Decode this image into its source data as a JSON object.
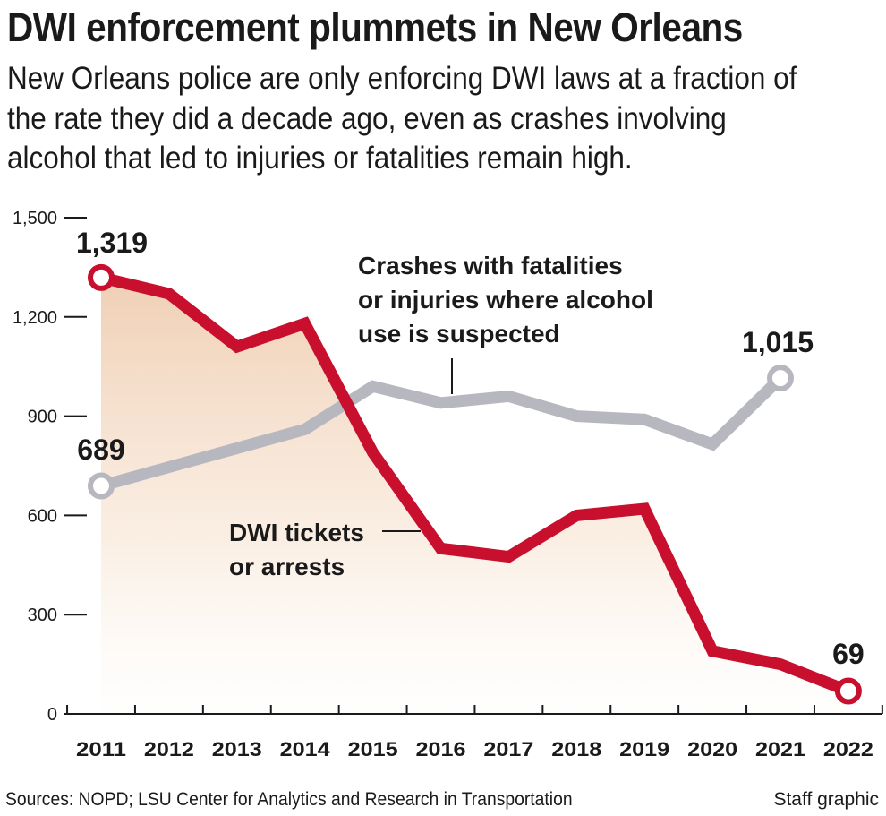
{
  "title": "DWI enforcement plummets in New Orleans",
  "subtitle": "New Orleans police are only enforcing DWI laws at a fraction of the rate they did a decade ago, even as crashes involving alcohol that led to injuries or fatalities remain high.",
  "footer": {
    "sources": "Sources: NOPD; LSU Center for Analytics and Research in Transportation",
    "credit": "Staff graphic"
  },
  "chart_data": {
    "type": "line",
    "title": "",
    "xlabel": "",
    "ylabel": "",
    "ylim": [
      0,
      1500
    ],
    "yticks": [
      0,
      300,
      600,
      900,
      1200,
      1500
    ],
    "ytick_labels": [
      "0",
      "300",
      "600",
      "900",
      "1,200",
      "1,500"
    ],
    "categories": [
      "2011",
      "2012",
      "2013",
      "2014",
      "2015",
      "2016",
      "2017",
      "2018",
      "2019",
      "2020",
      "2021",
      "2022"
    ],
    "series": [
      {
        "name": "DWI tickets or arrests",
        "label_lines": [
          "DWI tickets",
          "or arrests"
        ],
        "color": "#c8102e",
        "fill_color": "#e8a06a",
        "values": [
          1319,
          1270,
          1110,
          1180,
          790,
          500,
          475,
          600,
          620,
          190,
          150,
          69
        ],
        "start_label": "1,319",
        "end_label": "69"
      },
      {
        "name": "Crashes with fatalities or injuries where alcohol use is suspected",
        "label_lines": [
          "Crashes with fatalities",
          "or injuries where alcohol",
          "use is suspected"
        ],
        "color": "#b7b7bf",
        "values": [
          689,
          null,
          null,
          860,
          990,
          940,
          960,
          900,
          890,
          815,
          1015,
          null
        ],
        "start_label": "689",
        "end_label": "1,015"
      }
    ],
    "grid": false,
    "legend": "direct labels"
  }
}
